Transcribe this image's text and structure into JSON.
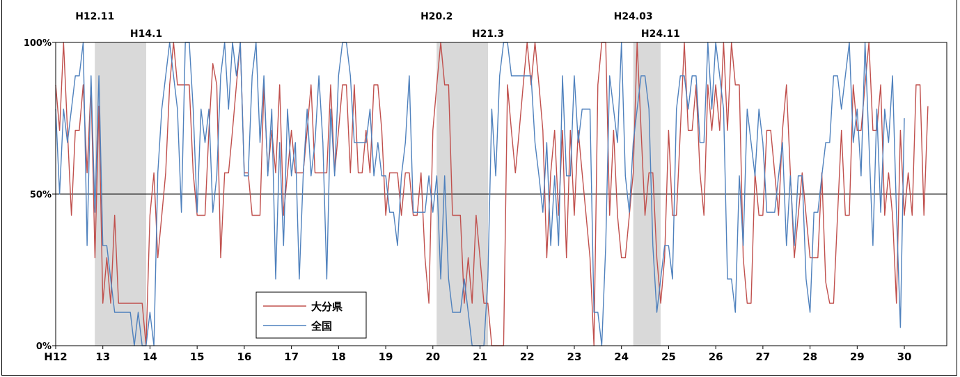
{
  "chart_data": {
    "type": "line",
    "title": "",
    "xlabel": "",
    "ylabel": "",
    "ylim": [
      0,
      100
    ],
    "yticks": [
      "0%",
      "50%",
      "100%"
    ],
    "x_axis": {
      "range": [
        12,
        30.9
      ],
      "ticks": [
        {
          "v": 12,
          "label": "H12"
        },
        {
          "v": 13,
          "label": "13"
        },
        {
          "v": 14,
          "label": "14"
        },
        {
          "v": 15,
          "label": "15"
        },
        {
          "v": 16,
          "label": "16"
        },
        {
          "v": 17,
          "label": "17"
        },
        {
          "v": 18,
          "label": "18"
        },
        {
          "v": 19,
          "label": "19"
        },
        {
          "v": 20,
          "label": "20"
        },
        {
          "v": 21,
          "label": "21"
        },
        {
          "v": 22,
          "label": "22"
        },
        {
          "v": 23,
          "label": "23"
        },
        {
          "v": 24,
          "label": "24"
        },
        {
          "v": 25,
          "label": "25"
        },
        {
          "v": 26,
          "label": "26"
        },
        {
          "v": 27,
          "label": "27"
        },
        {
          "v": 28,
          "label": "28"
        },
        {
          "v": 29,
          "label": "29"
        },
        {
          "v": 30,
          "label": "30"
        }
      ]
    },
    "recessions": [
      {
        "start": 12.83,
        "end": 13.92
      },
      {
        "start": 20.08,
        "end": 21.17
      },
      {
        "start": 24.25,
        "end": 24.83
      }
    ],
    "annotations": [
      {
        "text": "H12.11",
        "x": 12.83,
        "row": 1
      },
      {
        "text": "H14.1",
        "x": 13.92,
        "row": 2
      },
      {
        "text": "H20.2",
        "x": 20.08,
        "row": 1
      },
      {
        "text": "H21.3",
        "x": 21.17,
        "row": 2
      },
      {
        "text": "H24.03",
        "x": 24.25,
        "row": 1
      },
      {
        "text": "H24.11",
        "x": 24.83,
        "row": 2
      }
    ],
    "grid": "50% reference line",
    "legend": {
      "position": "lower-left-center"
    },
    "series": [
      {
        "name": "大分県",
        "color": "#c0504d",
        "x_start": 12,
        "step": 0.08333,
        "values": [
          86,
          71,
          100,
          71,
          43,
          71,
          71,
          86,
          57,
          86,
          29,
          79,
          14,
          29,
          14,
          43,
          14,
          14,
          14,
          14,
          14,
          14,
          14,
          0,
          43,
          57,
          29,
          43,
          57,
          86,
          100,
          86,
          86,
          86,
          86,
          57,
          43,
          43,
          43,
          71,
          93,
          86,
          29,
          57,
          57,
          71,
          86,
          100,
          57,
          57,
          43,
          43,
          43,
          86,
          57,
          71,
          57,
          86,
          43,
          57,
          71,
          57,
          57,
          57,
          71,
          86,
          57,
          57,
          57,
          57,
          86,
          57,
          71,
          86,
          86,
          57,
          86,
          57,
          57,
          71,
          57,
          86,
          86,
          71,
          43,
          57,
          57,
          57,
          43,
          57,
          57,
          43,
          43,
          57,
          29,
          14,
          71,
          86,
          100,
          86,
          86,
          43,
          43,
          43,
          14,
          29,
          14,
          43,
          29,
          14,
          14,
          0,
          0,
          0,
          0,
          86,
          71,
          57,
          71,
          86,
          100,
          86,
          100,
          86,
          71,
          29,
          57,
          71,
          43,
          71,
          29,
          71,
          43,
          71,
          57,
          43,
          29,
          0,
          86,
          100,
          100,
          43,
          71,
          43,
          29,
          29,
          43,
          57,
          100,
          71,
          43,
          57,
          57,
          29,
          14,
          29,
          71,
          43,
          43,
          71,
          100,
          71,
          71,
          86,
          57,
          43,
          86,
          71,
          86,
          71,
          100,
          71,
          100,
          86,
          86,
          29,
          14,
          14,
          57,
          43,
          43,
          71,
          71,
          57,
          43,
          71,
          86,
          57,
          29,
          43,
          57,
          43,
          29,
          29,
          29,
          57,
          21,
          14,
          14,
          43,
          71,
          43,
          43,
          86,
          71,
          71,
          86,
          100,
          71,
          71,
          86,
          43,
          57,
          43,
          14,
          71,
          43,
          57,
          43,
          86,
          86,
          43,
          79
        ]
      },
      {
        "name": "全国",
        "color": "#4f81bd",
        "x_start": 12,
        "step": 0.08333,
        "values": [
          78,
          50,
          78,
          67,
          78,
          89,
          89,
          100,
          33,
          89,
          44,
          89,
          33,
          33,
          22,
          11,
          11,
          11,
          11,
          11,
          0,
          11,
          0,
          0,
          11,
          0,
          57,
          78,
          89,
          100,
          89,
          78,
          44,
          100,
          100,
          78,
          44,
          78,
          67,
          78,
          44,
          56,
          89,
          100,
          78,
          100,
          89,
          100,
          56,
          56,
          89,
          100,
          67,
          89,
          56,
          78,
          22,
          67,
          33,
          78,
          56,
          67,
          22,
          56,
          78,
          56,
          67,
          89,
          67,
          22,
          78,
          56,
          89,
          100,
          100,
          89,
          67,
          67,
          67,
          67,
          78,
          56,
          67,
          56,
          56,
          44,
          44,
          33,
          56,
          67,
          89,
          44,
          44,
          44,
          44,
          56,
          44,
          56,
          22,
          56,
          22,
          11,
          11,
          11,
          22,
          11,
          0,
          0,
          0,
          0,
          22,
          78,
          56,
          89,
          100,
          100,
          89,
          89,
          89,
          89,
          89,
          89,
          67,
          56,
          44,
          67,
          33,
          56,
          33,
          89,
          56,
          56,
          89,
          67,
          78,
          78,
          78,
          11,
          11,
          0,
          33,
          89,
          78,
          67,
          100,
          56,
          44,
          67,
          78,
          89,
          89,
          78,
          33,
          11,
          22,
          33,
          33,
          22,
          78,
          89,
          89,
          78,
          89,
          89,
          67,
          67,
          100,
          78,
          100,
          89,
          78,
          22,
          22,
          11,
          56,
          33,
          78,
          67,
          56,
          78,
          67,
          44,
          44,
          44,
          56,
          67,
          33,
          56,
          33,
          56,
          56,
          22,
          11,
          44,
          44,
          56,
          67,
          67,
          89,
          89,
          78,
          89,
          100,
          67,
          78,
          56,
          100,
          67,
          33,
          78,
          44,
          78,
          67,
          89,
          44,
          6,
          75
        ]
      }
    ]
  }
}
